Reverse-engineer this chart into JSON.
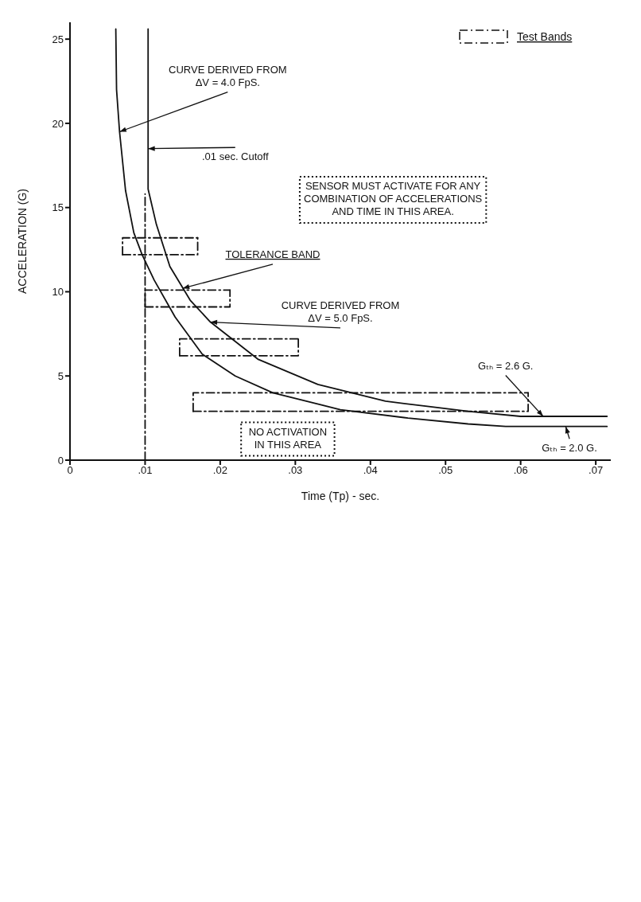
{
  "chart_data": {
    "type": "line",
    "xlabel": "Time  (Tp) - sec.",
    "ylabel": "ACCELERATION (G)",
    "xlim": [
      0,
      0.072
    ],
    "ylim": [
      0,
      26
    ],
    "xticks": [
      0,
      {
        "value": 0.01,
        "label": ".01"
      },
      {
        "value": 0.02,
        "label": ".02"
      },
      {
        "value": 0.03,
        "label": ".03"
      },
      {
        "value": 0.04,
        "label": ".04"
      },
      {
        "value": 0.05,
        "label": ".05"
      },
      {
        "value": 0.06,
        "label": ".06"
      },
      {
        "value": 0.07,
        "label": ".07"
      }
    ],
    "yticks": [
      0,
      5,
      10,
      15,
      20,
      25
    ],
    "marker": "none",
    "legend": "top right",
    "series": [
      {
        "color": "#111111",
        "line_style": "solid",
        "x": [
          0.0061,
          0.0062,
          0.0066,
          0.0074,
          0.0085,
          0.0096,
          0.0112,
          0.014,
          0.0176,
          0.022,
          0.027,
          0.036,
          0.045,
          0.053,
          0.058,
          0.0715
        ],
        "values": [
          25.6,
          22,
          19.5,
          16,
          13.5,
          12.2,
          10.7,
          8.5,
          6.3,
          5.0,
          4.0,
          3.0,
          2.5,
          2.15,
          2.0,
          2.0
        ]
      },
      {
        "color": "#111111",
        "line_style": "solid",
        "x": [
          0.0104,
          0.0104,
          0.0115,
          0.0133,
          0.016,
          0.0187,
          0.025,
          0.033,
          0.042,
          0.053,
          0.06,
          0.0715
        ],
        "values": [
          25.6,
          16.1,
          14,
          11.5,
          9.5,
          8.2,
          6.0,
          4.5,
          3.5,
          2.9,
          2.6,
          2.6
        ]
      },
      {
        "color": "#111111",
        "line_style": "dashed",
        "x": [
          0.01,
          0.01
        ],
        "values": [
          0,
          15.8
        ]
      },
      {
        "name": "Test Bands",
        "color": "#111111",
        "line_style": "dashed",
        "x": [
          0.007,
          0.007,
          0.017
        ],
        "values": [
          12.2,
          13.2,
          13.2
        ]
      },
      {
        "color": "#111111",
        "line_style": "dashed",
        "x": [
          0.007,
          0.017,
          0.017
        ],
        "values": [
          12.2,
          12.2,
          13.2
        ]
      },
      {
        "color": "#111111",
        "line_style": "dashed",
        "x": [
          0.01,
          0.01,
          0.0213
        ],
        "values": [
          9.1,
          10.1,
          10.1
        ]
      },
      {
        "color": "#111111",
        "line_style": "dashed",
        "x": [
          0.01,
          0.0213,
          0.0213
        ],
        "values": [
          9.1,
          9.1,
          10.1
        ]
      },
      {
        "color": "#111111",
        "line_style": "dashed",
        "x": [
          0.0146,
          0.0146,
          0.0304
        ],
        "values": [
          6.2,
          7.2,
          7.2
        ]
      },
      {
        "color": "#111111",
        "line_style": "dashed",
        "x": [
          0.0146,
          0.0304,
          0.0304
        ],
        "values": [
          6.2,
          6.2,
          7.2
        ]
      },
      {
        "color": "#111111",
        "line_style": "dashed",
        "x": [
          0.0164,
          0.0164,
          0.061
        ],
        "values": [
          2.9,
          4.0,
          4.0
        ]
      },
      {
        "color": "#111111",
        "line_style": "dashed",
        "x": [
          0.0164,
          0.061,
          0.061
        ],
        "values": [
          2.9,
          2.9,
          4.0
        ]
      }
    ],
    "annotations": [
      {
        "text": "CURVE DERIVED FROM\nΔV = 4.0 FpS.",
        "x": 0.0066,
        "y": 19.5
      },
      {
        "text": ".01 sec. Cutoff",
        "x": 0.0104,
        "y": 18.5
      },
      {
        "text": "TOLERANCE BAND",
        "x": 0.015,
        "y": 10.2
      },
      {
        "text": "CURVE DERIVED FROM\nΔV = 5.0 FpS.",
        "x": 0.0187,
        "y": 8.2
      },
      "SENSOR MUST ACTIVATE FOR ANY\nCOMBINATION OF ACCELERATIONS\nAND TIME IN THIS AREA.",
      "NO ACTIVATION\nIN THIS AREA",
      {
        "text": "Gₜₕ = 2.6 G.",
        "x": 0.063,
        "y": 2.6
      },
      {
        "text": "Gₜₕ = 2.0 G.",
        "x": 0.066,
        "y": 2.0
      }
    ]
  }
}
